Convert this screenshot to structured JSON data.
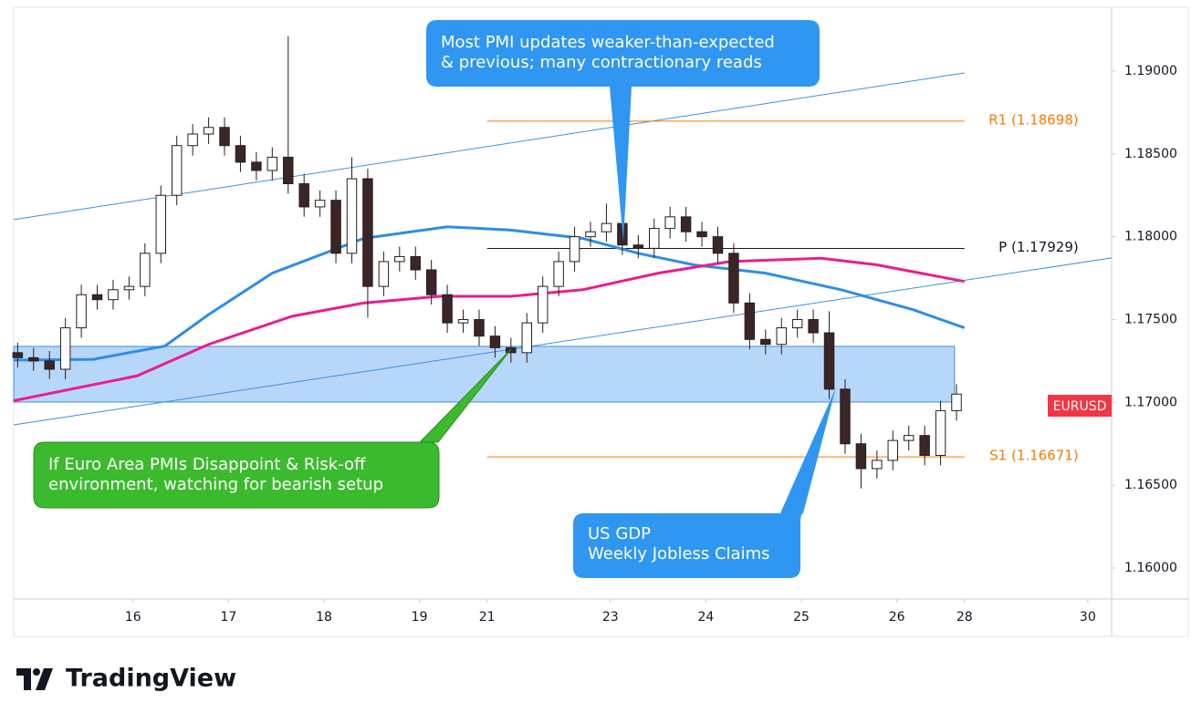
{
  "chart_data": {
    "type": "candlestick",
    "symbol": "EURUSD",
    "up_color": "#ffffff",
    "down_color": "#3a2626",
    "x": [
      1,
      5,
      9,
      13,
      17,
      21,
      25,
      29,
      33,
      37,
      41,
      45,
      49,
      53,
      57,
      61,
      65,
      69,
      73,
      77,
      81,
      85,
      89,
      93,
      97,
      101,
      105,
      109,
      113,
      117,
      121,
      125,
      129,
      133,
      137,
      141,
      145,
      149,
      153,
      157,
      161,
      165,
      169,
      173,
      177,
      181,
      185,
      189,
      193,
      197,
      201,
      205,
      209,
      213,
      217,
      221,
      225,
      229,
      233,
      237
    ],
    "open": [
      1.173,
      1.1727,
      1.1725,
      1.172,
      1.1745,
      1.1765,
      1.1762,
      1.1768,
      1.177,
      1.179,
      1.1825,
      1.1855,
      1.1862,
      1.1866,
      1.1855,
      1.1845,
      1.184,
      1.1848,
      1.1832,
      1.1818,
      1.1822,
      1.179,
      1.1835,
      1.177,
      1.1785,
      1.1788,
      1.178,
      1.1765,
      1.1748,
      1.175,
      1.174,
      1.1733,
      1.173,
      1.1748,
      1.177,
      1.1785,
      1.18,
      1.1803,
      1.1808,
      1.1795,
      1.1793,
      1.1805,
      1.1812,
      1.1803,
      1.18,
      1.179,
      1.176,
      1.1738,
      1.1735,
      1.1745,
      1.175,
      1.1742,
      1.1708,
      1.1675,
      1.166,
      1.1665,
      1.1677,
      1.168,
      1.1668,
      1.1695
    ],
    "high": [
      1.1736,
      1.1733,
      1.1731,
      1.1751,
      1.1771,
      1.1771,
      1.1774,
      1.1776,
      1.1796,
      1.1831,
      1.1861,
      1.1868,
      1.1872,
      1.1872,
      1.1861,
      1.1851,
      1.1854,
      1.1921,
      1.1838,
      1.1828,
      1.1828,
      1.1848,
      1.1841,
      1.1791,
      1.1794,
      1.1794,
      1.1786,
      1.1771,
      1.1756,
      1.1756,
      1.1746,
      1.1739,
      1.1754,
      1.1776,
      1.1791,
      1.1806,
      1.1809,
      1.182,
      1.1814,
      1.1801,
      1.1811,
      1.1818,
      1.1818,
      1.1809,
      1.1806,
      1.1796,
      1.1766,
      1.1744,
      1.1751,
      1.1756,
      1.1756,
      1.1755,
      1.1714,
      1.1681,
      1.1671,
      1.1683,
      1.1686,
      1.1686,
      1.1701,
      1.1711
    ],
    "low": [
      1.1721,
      1.1719,
      1.1714,
      1.1714,
      1.1739,
      1.1756,
      1.1756,
      1.1762,
      1.1764,
      1.1784,
      1.1819,
      1.1849,
      1.1856,
      1.1849,
      1.1839,
      1.1834,
      1.1834,
      1.1826,
      1.1812,
      1.1812,
      1.1784,
      1.1784,
      1.1751,
      1.1764,
      1.1779,
      1.1774,
      1.1759,
      1.1742,
      1.1742,
      1.1734,
      1.1727,
      1.1724,
      1.1724,
      1.1742,
      1.1764,
      1.1779,
      1.1794,
      1.1797,
      1.1789,
      1.1787,
      1.1787,
      1.1799,
      1.1797,
      1.1794,
      1.1784,
      1.1754,
      1.1732,
      1.1729,
      1.1729,
      1.1739,
      1.1736,
      1.1702,
      1.1669,
      1.1648,
      1.1654,
      1.1659,
      1.1671,
      1.1662,
      1.1662,
      1.1689
    ],
    "close": [
      1.1727,
      1.1725,
      1.172,
      1.1745,
      1.1765,
      1.1762,
      1.1768,
      1.177,
      1.179,
      1.1825,
      1.1855,
      1.1862,
      1.1866,
      1.1855,
      1.1845,
      1.184,
      1.1848,
      1.1832,
      1.1818,
      1.1822,
      1.179,
      1.1835,
      1.177,
      1.1785,
      1.1788,
      1.178,
      1.1765,
      1.1748,
      1.175,
      1.174,
      1.1733,
      1.173,
      1.1748,
      1.177,
      1.1785,
      1.18,
      1.1803,
      1.1808,
      1.1795,
      1.1793,
      1.1805,
      1.1812,
      1.1803,
      1.18,
      1.179,
      1.176,
      1.1738,
      1.1735,
      1.1745,
      1.175,
      1.1742,
      1.1708,
      1.1675,
      1.166,
      1.1665,
      1.1677,
      1.168,
      1.1668,
      1.1695,
      1.1705
    ],
    "xlim": [
      0,
      276
    ],
    "ylim": [
      1.15813,
      1.19385
    ],
    "xticks": [
      {
        "value": 30,
        "label": "16"
      },
      {
        "value": 54,
        "label": "17"
      },
      {
        "value": 78,
        "label": "18"
      },
      {
        "value": 102,
        "label": "19"
      },
      {
        "value": 119,
        "label": "21"
      },
      {
        "value": 150,
        "label": "23"
      },
      {
        "value": 174,
        "label": "24"
      },
      {
        "value": 198,
        "label": "25"
      },
      {
        "value": 222,
        "label": "26"
      },
      {
        "value": 239,
        "label": "28"
      },
      {
        "value": 270,
        "label": "30"
      }
    ],
    "yticks": [
      {
        "value": 1.16,
        "label": "1.16000"
      },
      {
        "value": 1.165,
        "label": "1.16500"
      },
      {
        "value": 1.17,
        "label": "1.17000"
      },
      {
        "value": 1.175,
        "label": "1.17500"
      },
      {
        "value": 1.18,
        "label": "1.18000"
      },
      {
        "value": 1.185,
        "label": "1.18500"
      },
      {
        "value": 1.19,
        "label": "1.19000"
      }
    ],
    "moving_averages": [
      {
        "color": "#2e8de6",
        "x": [
          0,
          20,
          38,
          49,
          65,
          88,
          109,
          125,
          143,
          157,
          171,
          189,
          208,
          226,
          239
        ],
        "values": [
          1.17255,
          1.1726,
          1.1734,
          1.1753,
          1.1778,
          1.1799,
          1.1806,
          1.1804,
          1.1799,
          1.179,
          1.1783,
          1.1778,
          1.1768,
          1.1756,
          1.1745
        ]
      },
      {
        "color": "#e91e8c",
        "x": [
          0,
          31,
          49,
          70,
          88,
          107,
          125,
          143,
          162,
          180,
          203,
          217,
          239
        ],
        "values": [
          1.1701,
          1.1716,
          1.1735,
          1.1752,
          1.176,
          1.1764,
          1.1764,
          1.1768,
          1.1778,
          1.1785,
          1.1787,
          1.1783,
          1.1773
        ]
      }
    ],
    "trendlines": [
      {
        "color": "#3d8fe0",
        "x": [
          0,
          239
        ],
        "values": [
          1.18103,
          1.18989
        ]
      },
      {
        "color": "#3d8fe0",
        "x": [
          0,
          276
        ],
        "values": [
          1.16864,
          1.17872
        ]
      }
    ],
    "levels": [
      {
        "label": "R1 (1.18698)",
        "value": 1.18698,
        "x": [
          119,
          239
        ],
        "color": "#f57c00"
      },
      {
        "label": "P (1.17929)",
        "value": 1.17929,
        "x": [
          119,
          239
        ],
        "color": "#131722"
      },
      {
        "label": "S1 (1.16671)",
        "value": 1.16671,
        "x": [
          119,
          239
        ],
        "color": "#f57c00"
      }
    ],
    "zone": {
      "x": [
        0,
        236.5
      ],
      "values": [
        1.17002,
        1.17338
      ],
      "color": "#90c2f7"
    },
    "annotations": [
      {
        "lines": [
          "Most PMI updates weaker-than-expected",
          "& previous; many contractionary reads"
        ],
        "color": "#2f96f2"
      },
      {
        "lines": [
          "If Euro Area PMIs Disappoint & Risk-off",
          "environment, watching for bearish setup"
        ],
        "color": "#3bba2d"
      },
      {
        "lines": [
          "US GDP",
          "Weekly Jobless Claims"
        ],
        "color": "#2f96f2"
      }
    ]
  },
  "branding": {
    "name": "TradingView"
  }
}
